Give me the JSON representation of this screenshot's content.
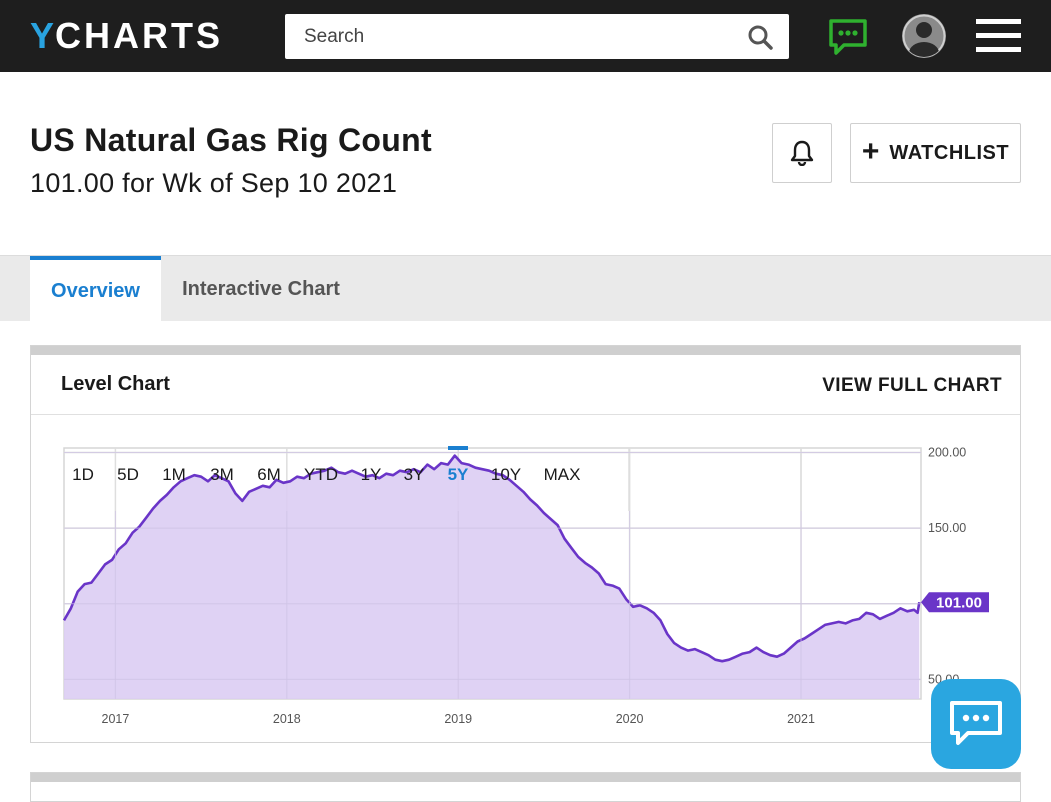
{
  "header": {
    "logo_y": "Y",
    "logo_rest": "CHARTS",
    "search_placeholder": "Search",
    "brand_color": "#29a3e0",
    "chat_icon_color": "#2fb12f"
  },
  "page": {
    "title": "US Natural Gas Rig Count",
    "subtitle": "101.00 for Wk of Sep 10 2021",
    "watchlist_label": "WATCHLIST"
  },
  "tabs": [
    {
      "label": "Overview",
      "active": true
    },
    {
      "label": "Interactive Chart",
      "active": false
    }
  ],
  "card": {
    "title": "Level Chart",
    "view_full_label": "VIEW FULL CHART"
  },
  "ranges": [
    "1D",
    "5D",
    "1M",
    "3M",
    "6M",
    "YTD",
    "1Y",
    "3Y",
    "5Y",
    "10Y",
    "MAX"
  ],
  "active_range": "5Y",
  "chart_data": {
    "type": "area",
    "title": "",
    "xlabel": "",
    "ylabel": "",
    "x_ticks": [
      "2017",
      "2018",
      "2019",
      "2020",
      "2021"
    ],
    "y_ticks": [
      "200.00",
      "150.00",
      "100.00",
      "50.00"
    ],
    "ylim": [
      37,
      203
    ],
    "current_value_label": "101.00",
    "line_color": "#6a35c8",
    "fill_color": "#dccdf3",
    "series": [
      {
        "values": [
          [
            2016.7,
            89
          ],
          [
            2016.74,
            97
          ],
          [
            2016.78,
            108
          ],
          [
            2016.82,
            113
          ],
          [
            2016.86,
            114
          ],
          [
            2016.9,
            120
          ],
          [
            2016.94,
            126
          ],
          [
            2016.98,
            129
          ],
          [
            2017.02,
            136
          ],
          [
            2017.06,
            140
          ],
          [
            2017.1,
            147
          ],
          [
            2017.14,
            151
          ],
          [
            2017.18,
            157
          ],
          [
            2017.22,
            163
          ],
          [
            2017.26,
            168
          ],
          [
            2017.3,
            172
          ],
          [
            2017.34,
            177
          ],
          [
            2017.38,
            181
          ],
          [
            2017.42,
            183
          ],
          [
            2017.46,
            185
          ],
          [
            2017.5,
            184
          ],
          [
            2017.54,
            181
          ],
          [
            2017.58,
            185
          ],
          [
            2017.62,
            183
          ],
          [
            2017.66,
            181
          ],
          [
            2017.7,
            173
          ],
          [
            2017.74,
            168
          ],
          [
            2017.78,
            174
          ],
          [
            2017.82,
            176
          ],
          [
            2017.86,
            178
          ],
          [
            2017.9,
            177
          ],
          [
            2017.94,
            182
          ],
          [
            2017.98,
            180
          ],
          [
            2018.02,
            181
          ],
          [
            2018.06,
            184
          ],
          [
            2018.1,
            183
          ],
          [
            2018.14,
            186
          ],
          [
            2018.18,
            187
          ],
          [
            2018.22,
            188
          ],
          [
            2018.26,
            190
          ],
          [
            2018.3,
            187
          ],
          [
            2018.34,
            186
          ],
          [
            2018.38,
            188
          ],
          [
            2018.42,
            186
          ],
          [
            2018.46,
            184
          ],
          [
            2018.5,
            185
          ],
          [
            2018.54,
            183
          ],
          [
            2018.58,
            186
          ],
          [
            2018.62,
            185
          ],
          [
            2018.66,
            188
          ],
          [
            2018.7,
            187
          ],
          [
            2018.74,
            189
          ],
          [
            2018.78,
            187
          ],
          [
            2018.82,
            192
          ],
          [
            2018.86,
            189
          ],
          [
            2018.9,
            193
          ],
          [
            2018.94,
            192
          ],
          [
            2018.98,
            198
          ],
          [
            2019.02,
            193
          ],
          [
            2019.06,
            192
          ],
          [
            2019.1,
            190
          ],
          [
            2019.14,
            189
          ],
          [
            2019.18,
            188
          ],
          [
            2019.22,
            186
          ],
          [
            2019.26,
            185
          ],
          [
            2019.3,
            182
          ],
          [
            2019.34,
            178
          ],
          [
            2019.38,
            174
          ],
          [
            2019.42,
            169
          ],
          [
            2019.46,
            165
          ],
          [
            2019.5,
            160
          ],
          [
            2019.54,
            156
          ],
          [
            2019.58,
            152
          ],
          [
            2019.62,
            143
          ],
          [
            2019.66,
            137
          ],
          [
            2019.7,
            131
          ],
          [
            2019.74,
            127
          ],
          [
            2019.78,
            124
          ],
          [
            2019.82,
            120
          ],
          [
            2019.86,
            113
          ],
          [
            2019.9,
            112
          ],
          [
            2019.94,
            110
          ],
          [
            2019.98,
            103
          ],
          [
            2020.02,
            98
          ],
          [
            2020.06,
            99
          ],
          [
            2020.1,
            97
          ],
          [
            2020.14,
            94
          ],
          [
            2020.18,
            89
          ],
          [
            2020.22,
            80
          ],
          [
            2020.26,
            74
          ],
          [
            2020.3,
            71
          ],
          [
            2020.34,
            69
          ],
          [
            2020.38,
            70
          ],
          [
            2020.42,
            68
          ],
          [
            2020.46,
            66
          ],
          [
            2020.5,
            63
          ],
          [
            2020.54,
            62
          ],
          [
            2020.58,
            63
          ],
          [
            2020.62,
            65
          ],
          [
            2020.66,
            67
          ],
          [
            2020.7,
            68
          ],
          [
            2020.74,
            71
          ],
          [
            2020.78,
            68
          ],
          [
            2020.82,
            66
          ],
          [
            2020.86,
            65
          ],
          [
            2020.9,
            67
          ],
          [
            2020.94,
            71
          ],
          [
            2020.98,
            75
          ],
          [
            2021.02,
            77
          ],
          [
            2021.06,
            80
          ],
          [
            2021.1,
            83
          ],
          [
            2021.14,
            86
          ],
          [
            2021.18,
            87
          ],
          [
            2021.22,
            88
          ],
          [
            2021.26,
            87
          ],
          [
            2021.3,
            89
          ],
          [
            2021.34,
            90
          ],
          [
            2021.38,
            94
          ],
          [
            2021.42,
            93
          ],
          [
            2021.46,
            90
          ],
          [
            2021.5,
            92
          ],
          [
            2021.54,
            94
          ],
          [
            2021.58,
            97
          ],
          [
            2021.62,
            95
          ],
          [
            2021.66,
            96
          ],
          [
            2021.68,
            94
          ],
          [
            2021.69,
            101
          ]
        ]
      }
    ]
  }
}
